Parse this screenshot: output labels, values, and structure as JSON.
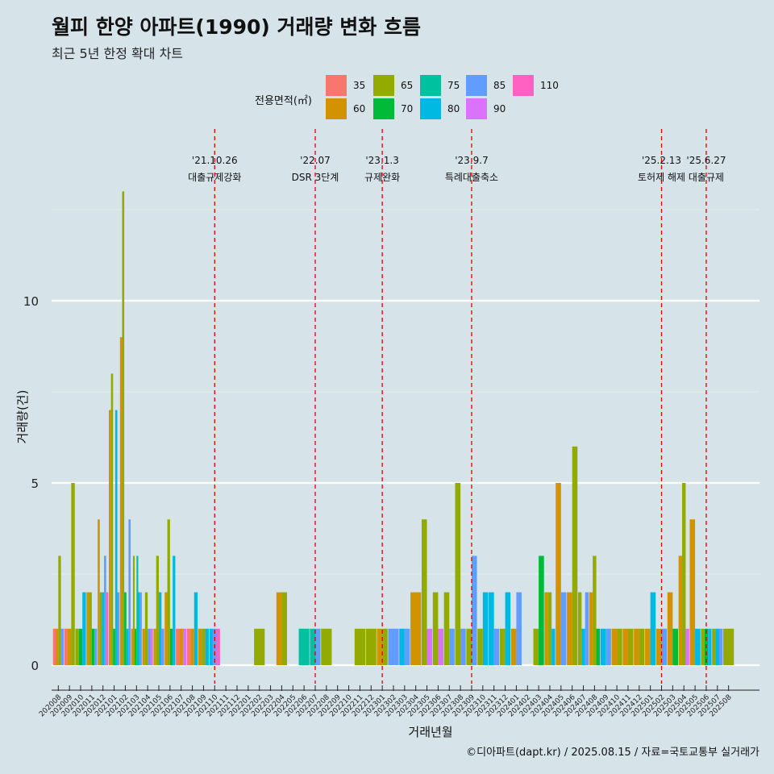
{
  "header": {
    "title": "월피 한양 아파트(1990) 거래량 변화 흐름",
    "subtitle": "최근 5년 한정 확대 차트"
  },
  "legend": {
    "title": "전용면적(㎡)",
    "items": [
      {
        "label": "35",
        "color": "#f8766d"
      },
      {
        "label": "60",
        "color": "#d39200"
      },
      {
        "label": "65",
        "color": "#93aa00"
      },
      {
        "label": "70",
        "color": "#00ba38"
      },
      {
        "label": "75",
        "color": "#00c19f"
      },
      {
        "label": "80",
        "color": "#00b9e3"
      },
      {
        "label": "85",
        "color": "#619cff"
      },
      {
        "label": "90",
        "color": "#db72fb"
      },
      {
        "label": "110",
        "color": "#ff61c3"
      }
    ]
  },
  "caption": "©디아파트(dapt.kr) / 2025.08.15 / 자료=국토교통부 실거래가",
  "chart_data": {
    "type": "bar",
    "xlabel": "거래년월",
    "ylabel": "거래량(건)",
    "ylim": [
      -0.5,
      13.5
    ],
    "yticks": [
      0,
      5,
      10
    ],
    "grid": "horizontal major",
    "categories": [
      "202008",
      "202009",
      "202010",
      "202011",
      "202012",
      "202101",
      "202102",
      "202103",
      "202104",
      "202105",
      "202106",
      "202107",
      "202108",
      "202109",
      "202110",
      "202111",
      "202112",
      "202201",
      "202202",
      "202203",
      "202204",
      "202205",
      "202206",
      "202207",
      "202208",
      "202209",
      "202210",
      "202211",
      "202212",
      "202301",
      "202302",
      "202303",
      "202304",
      "202305",
      "202306",
      "202307",
      "202308",
      "202309",
      "202310",
      "202311",
      "202312",
      "202401",
      "202402",
      "202403",
      "202404",
      "202405",
      "202406",
      "202407",
      "202408",
      "202409",
      "202410",
      "202411",
      "202412",
      "202501",
      "202502",
      "202503",
      "202504",
      "202505",
      "202506",
      "202507",
      "202508"
    ],
    "data": {
      "202008": {
        "35": 1,
        "60": 1,
        "65": 3,
        "85": 1
      },
      "202009": {
        "35": 1,
        "60": 1,
        "65": 5
      },
      "202010": {
        "65": 1,
        "70": 1,
        "80": 2
      },
      "202011": {
        "60": 2,
        "65": 2,
        "70": 1,
        "85": 1
      },
      "202012": {
        "60": 4,
        "65": 2,
        "80": 2,
        "85": 3,
        "110": 2
      },
      "202101": {
        "60": 7,
        "65": 8,
        "70": 1,
        "80": 7,
        "85": 2
      },
      "202102": {
        "60": 9,
        "65": 13,
        "70": 2,
        "80": 1,
        "85": 4
      },
      "202103": {
        "60": 1,
        "65": 3,
        "70": 1,
        "75": 3,
        "80": 2,
        "85": 2
      },
      "202104": {
        "60": 1,
        "65": 2,
        "85": 1,
        "90": 1
      },
      "202105": {
        "60": 1,
        "65": 3,
        "80": 2,
        "85": 1
      },
      "202106": {
        "60": 2,
        "65": 4,
        "70": 1,
        "80": 3
      },
      "202107": {
        "35": 1,
        "60": 1,
        "90": 1
      },
      "202108": {
        "35": 1,
        "60": 1,
        "80": 2
      },
      "202109": {
        "60": 1,
        "65": 1,
        "80": 1
      },
      "202110": {
        "80": 1,
        "85": 1,
        "110": 1
      },
      "202111": {},
      "202112": {},
      "202201": {},
      "202202": {
        "65": 1
      },
      "202203": {},
      "202204": {
        "60": 2,
        "65": 2
      },
      "202205": {},
      "202206": {
        "75": 1
      },
      "202207": {
        "75": 1,
        "85": 1
      },
      "202208": {
        "65": 1
      },
      "202209": {},
      "202210": {},
      "202211": {
        "65": 1
      },
      "202212": {
        "65": 1
      },
      "202301": {
        "60": 1,
        "65": 1
      },
      "202302": {
        "85": 1
      },
      "202303": {
        "80": 1,
        "85": 1
      },
      "202304": {
        "60": 2
      },
      "202305": {
        "65": 4,
        "90": 1
      },
      "202306": {
        "65": 2,
        "90": 1
      },
      "202307": {
        "65": 2,
        "85": 1
      },
      "202308": {
        "65": 5,
        "85": 1
      },
      "202309": {
        "65": 1,
        "85": 3
      },
      "202310": {
        "65": 1,
        "80": 2
      },
      "202311": {
        "80": 2,
        "85": 1
      },
      "202312": {
        "65": 1,
        "80": 2
      },
      "202401": {
        "60": 1,
        "85": 2
      },
      "202402": {},
      "202403": {
        "65": 1,
        "70": 3
      },
      "202404": {
        "60": 2,
        "65": 2,
        "80": 1
      },
      "202405": {
        "60": 5,
        "85": 2
      },
      "202406": {
        "60": 2,
        "65": 6
      },
      "202407": {
        "65": 2,
        "80": 1,
        "85": 2
      },
      "202408": {
        "60": 2,
        "65": 3,
        "70": 1
      },
      "202409": {
        "80": 1,
        "85": 1
      },
      "202410": {
        "60": 1,
        "65": 1
      },
      "202411": {
        "60": 1,
        "65": 1
      },
      "202412": {
        "60": 1,
        "65": 1
      },
      "202501": {
        "60": 1,
        "80": 2
      },
      "202502": {
        "60": 1,
        "85": 1
      },
      "202503": {
        "60": 2,
        "70": 1
      },
      "202504": {
        "60": 3,
        "65": 5,
        "90": 1
      },
      "202505": {
        "60": 4,
        "80": 1
      },
      "202506": {
        "65": 1,
        "70": 1,
        "80": 1
      },
      "202507": {
        "65": 1,
        "80": 1,
        "85": 1
      },
      "202508": {
        "65": 1
      }
    },
    "events": [
      {
        "month": "202110",
        "date": "'21.10.26",
        "label": "대출규제강화"
      },
      {
        "month": "202207",
        "date": "'22.07",
        "label": "DSR 3단계"
      },
      {
        "month": "202301",
        "date": "'23.1.3",
        "label": "규제완화"
      },
      {
        "month": "202309",
        "date": "'23.9.7",
        "label": "특례대출축소"
      },
      {
        "month": "202502",
        "date": "'25.2.13",
        "label": "토허제 해제"
      },
      {
        "month": "202506",
        "date": "'25.6.27",
        "label": "대출규제"
      }
    ]
  }
}
